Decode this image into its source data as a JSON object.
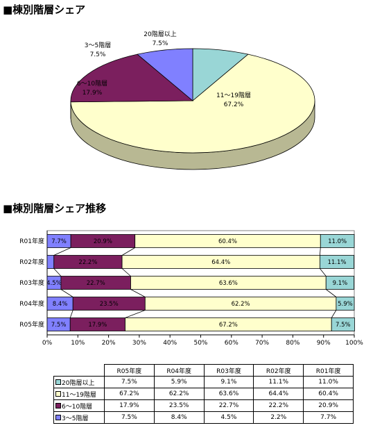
{
  "titles": {
    "pie": "■棟別階層シェア",
    "bar": "■棟別階層シェア推移"
  },
  "colors": {
    "c20": "#99D6D6",
    "c11": "#FFFFCC",
    "c6": "#7B1F5E",
    "c3": "#8080FF"
  },
  "chart_data": [
    {
      "type": "pie",
      "title": "■棟別階層シェア",
      "slices": [
        {
          "name": "20階層以上",
          "value": 7.5,
          "label": "7.5%",
          "color": "#99D6D6"
        },
        {
          "name": "11～19階層",
          "value": 67.2,
          "label": "67.2%",
          "color": "#FFFFCC"
        },
        {
          "name": "6～10階層",
          "value": 17.9,
          "label": "17.9%",
          "color": "#7B1F5E"
        },
        {
          "name": "3～5階層",
          "value": 7.5,
          "label": "7.5%",
          "color": "#8080FF"
        }
      ],
      "style": "3d"
    },
    {
      "type": "bar",
      "orientation": "horizontal",
      "stacked": "percent",
      "title": "■棟別階層シェア推移",
      "categories": [
        "R01年度",
        "R02年度",
        "R03年度",
        "R04年度",
        "R05年度"
      ],
      "series": [
        {
          "name": "3～5階層",
          "values": [
            7.7,
            2.2,
            4.5,
            8.4,
            7.5
          ],
          "labels": [
            "7.7%",
            "",
            "4.5%",
            "8.4%",
            "7.5%"
          ],
          "color": "#8080FF"
        },
        {
          "name": "6～10階層",
          "values": [
            20.9,
            22.2,
            22.7,
            23.5,
            17.9
          ],
          "labels": [
            "20.9%",
            "22.2%",
            "22.7%",
            "23.5%",
            "17.9%"
          ],
          "color": "#7B1F5E"
        },
        {
          "name": "11～19階層",
          "values": [
            60.4,
            64.4,
            63.6,
            62.2,
            67.2
          ],
          "labels": [
            "60.4%",
            "64.4%",
            "63.6%",
            "62.2%",
            "67.2%"
          ],
          "color": "#FFFFCC"
        },
        {
          "name": "20階層以上",
          "values": [
            11.0,
            11.1,
            9.1,
            5.9,
            7.5
          ],
          "labels": [
            "11.0%",
            "11.1%",
            "9.1%",
            "5.9%",
            "7.5%"
          ],
          "color": "#99D6D6"
        }
      ],
      "xticks": [
        "0%",
        "10%",
        "20%",
        "30%",
        "40%",
        "50%",
        "60%",
        "70%",
        "80%",
        "90%",
        "100%"
      ],
      "xlim": [
        0,
        100
      ],
      "series_lines": true
    }
  ],
  "table": {
    "columns": [
      "R05年度",
      "R04年度",
      "R03年度",
      "R02年度",
      "R01年度"
    ],
    "rows": [
      {
        "name": "20階層以上",
        "color": "#99D6D6",
        "values": [
          "7.5%",
          "5.9%",
          "9.1%",
          "11.1%",
          "11.0%"
        ]
      },
      {
        "name": "11～19階層",
        "color": "#FFFFCC",
        "values": [
          "67.2%",
          "62.2%",
          "63.6%",
          "64.4%",
          "60.4%"
        ]
      },
      {
        "name": "6～10階層",
        "color": "#7B1F5E",
        "values": [
          "17.9%",
          "23.5%",
          "22.7%",
          "22.2%",
          "20.9%"
        ]
      },
      {
        "name": "3～5階層",
        "color": "#8080FF",
        "values": [
          "7.5%",
          "8.4%",
          "4.5%",
          "2.2%",
          "7.7%"
        ]
      }
    ]
  }
}
